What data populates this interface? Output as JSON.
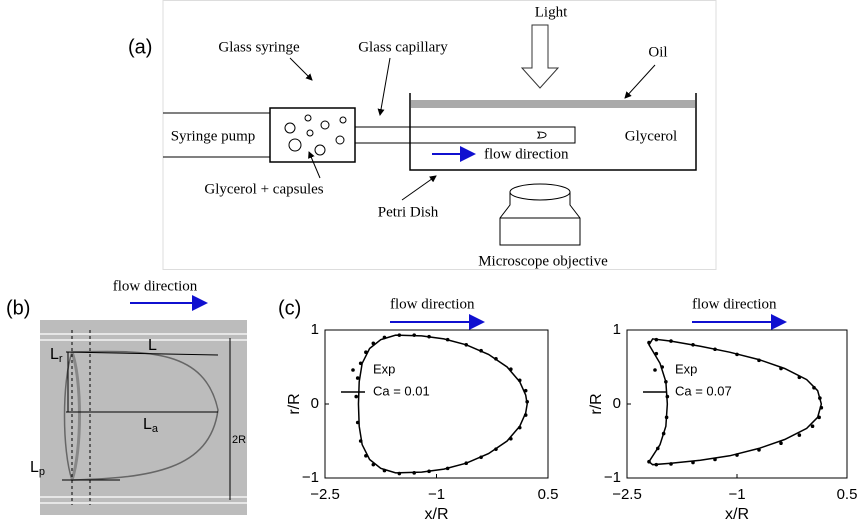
{
  "diagram_a": {
    "panel_label": "(a)",
    "light": "Light",
    "glass_syringe": "Glass syringe",
    "glass_capillary": "Glass capillary",
    "oil": "Oil",
    "syringe_pump": "Syringe pump",
    "glycerol": "Glycerol",
    "flow_direction": "flow direction",
    "glycerol_capsules": "Glycerol + capsules",
    "petri_dish": "Petri Dish",
    "microscope_objective": "Microscope objective"
  },
  "photo_b": {
    "panel_label": "(b)",
    "flow_direction": "flow direction",
    "L": "L",
    "Lr": {
      "main": "L",
      "sub": "r"
    },
    "La": {
      "main": "L",
      "sub": "a"
    },
    "Lp": {
      "main": "L",
      "sub": "p"
    },
    "diameter": "2R"
  },
  "panel_c": {
    "panel_label": "(c)"
  },
  "chart_data": [
    {
      "type": "scatter",
      "annotation": "flow direction",
      "xlabel": "x/R",
      "ylabel": "r/R",
      "xlim": [
        -2.5,
        0.5
      ],
      "ylim": [
        -1,
        1
      ],
      "xticks": [
        {
          "value": -2.5,
          "label": "−2.5"
        },
        {
          "value": -1,
          "label": "−1"
        },
        0.5
      ],
      "yticks": [
        {
          "value": -1,
          "label": "−1"
        },
        0,
        1
      ],
      "legend": "left",
      "series": [
        {
          "name": "Exp",
          "color": "#000000",
          "mode": "markers",
          "x": [
            -2.08,
            -2.06,
            -2.02,
            -1.95,
            -1.85,
            -1.7,
            -1.5,
            -1.3,
            -1.1,
            -0.85,
            -0.6,
            -0.4,
            -0.2,
            0,
            0.12,
            0.2,
            0.22,
            0.2,
            0.12,
            0,
            -0.2,
            -0.4,
            -0.6,
            -0.85,
            -1.1,
            -1.3,
            -1.5,
            -1.7,
            -1.85,
            -1.95,
            -2.02,
            -2.06
          ],
          "values": [
            0.1,
            0.35,
            0.55,
            0.7,
            0.82,
            0.9,
            0.93,
            0.93,
            0.91,
            0.87,
            0.8,
            0.72,
            0.61,
            0.47,
            0.32,
            0.18,
            0.03,
            -0.15,
            -0.32,
            -0.47,
            -0.61,
            -0.72,
            -0.8,
            -0.87,
            -0.91,
            -0.93,
            -0.94,
            -0.9,
            -0.82,
            -0.7,
            -0.5,
            -0.25
          ]
        },
        {
          "name": "Ca = 0.01",
          "color": "#000000",
          "mode": "line",
          "x": [
            -2.05,
            -2.04,
            -2.0,
            -1.9,
            -1.75,
            -1.55,
            -1.2,
            -0.9,
            -0.6,
            -0.3,
            -0.05,
            0.12,
            0.2,
            0.22,
            0.2,
            0.12,
            -0.05,
            -0.3,
            -0.6,
            -0.9,
            -1.2,
            -1.55,
            -1.75,
            -1.9,
            -2.0,
            -2.04,
            -2.05
          ],
          "values": [
            0,
            0.3,
            0.55,
            0.75,
            0.87,
            0.93,
            0.92,
            0.88,
            0.8,
            0.67,
            0.5,
            0.3,
            0.12,
            0,
            -0.12,
            -0.3,
            -0.5,
            -0.67,
            -0.8,
            -0.88,
            -0.92,
            -0.93,
            -0.87,
            -0.75,
            -0.55,
            -0.3,
            0
          ]
        }
      ]
    },
    {
      "type": "scatter",
      "annotation": "flow direction",
      "xlabel": "x/R",
      "ylabel": "r/R",
      "xlim": [
        -2.5,
        0.5
      ],
      "ylim": [
        -1,
        1
      ],
      "xticks": [
        {
          "value": -2.5,
          "label": "−2.5"
        },
        {
          "value": -1,
          "label": "−1"
        },
        0.5
      ],
      "yticks": [
        {
          "value": -1,
          "label": "−1"
        },
        0,
        1
      ],
      "legend": "left",
      "series": [
        {
          "name": "Exp",
          "color": "#000000",
          "mode": "markers",
          "x": [
            -1.95,
            -1.97,
            -2.02,
            -2.1,
            -2.2,
            -2.1,
            -1.9,
            -1.6,
            -1.3,
            -1.0,
            -0.7,
            -0.4,
            -0.15,
            0.05,
            0.13,
            0.15,
            0.12,
            0.03,
            -0.15,
            -0.4,
            -0.7,
            -1.0,
            -1.3,
            -1.6,
            -1.9,
            -2.1,
            -2.2,
            -2.08,
            -2.0,
            -1.96
          ],
          "values": [
            0.1,
            0.3,
            0.5,
            0.68,
            0.83,
            0.87,
            0.85,
            0.8,
            0.74,
            0.67,
            0.59,
            0.48,
            0.36,
            0.22,
            0.08,
            -0.05,
            -0.18,
            -0.3,
            -0.42,
            -0.53,
            -0.62,
            -0.69,
            -0.75,
            -0.79,
            -0.81,
            -0.82,
            -0.78,
            -0.6,
            -0.4,
            -0.18
          ]
        },
        {
          "name": "Ca = 0.07",
          "color": "#000000",
          "mode": "line",
          "x": [
            -1.95,
            -1.97,
            -2.05,
            -2.2,
            -2.15,
            -1.9,
            -1.5,
            -1.1,
            -0.7,
            -0.35,
            -0.05,
            0.1,
            0.15,
            0.1,
            -0.05,
            -0.35,
            -0.7,
            -1.1,
            -1.5,
            -1.9,
            -2.15,
            -2.2,
            -2.05,
            -1.97,
            -1.95
          ],
          "values": [
            0,
            0.3,
            0.55,
            0.8,
            0.88,
            0.85,
            0.78,
            0.7,
            0.6,
            0.48,
            0.33,
            0.18,
            0,
            -0.18,
            -0.33,
            -0.48,
            -0.6,
            -0.7,
            -0.76,
            -0.8,
            -0.82,
            -0.78,
            -0.55,
            -0.3,
            0
          ]
        }
      ]
    }
  ]
}
